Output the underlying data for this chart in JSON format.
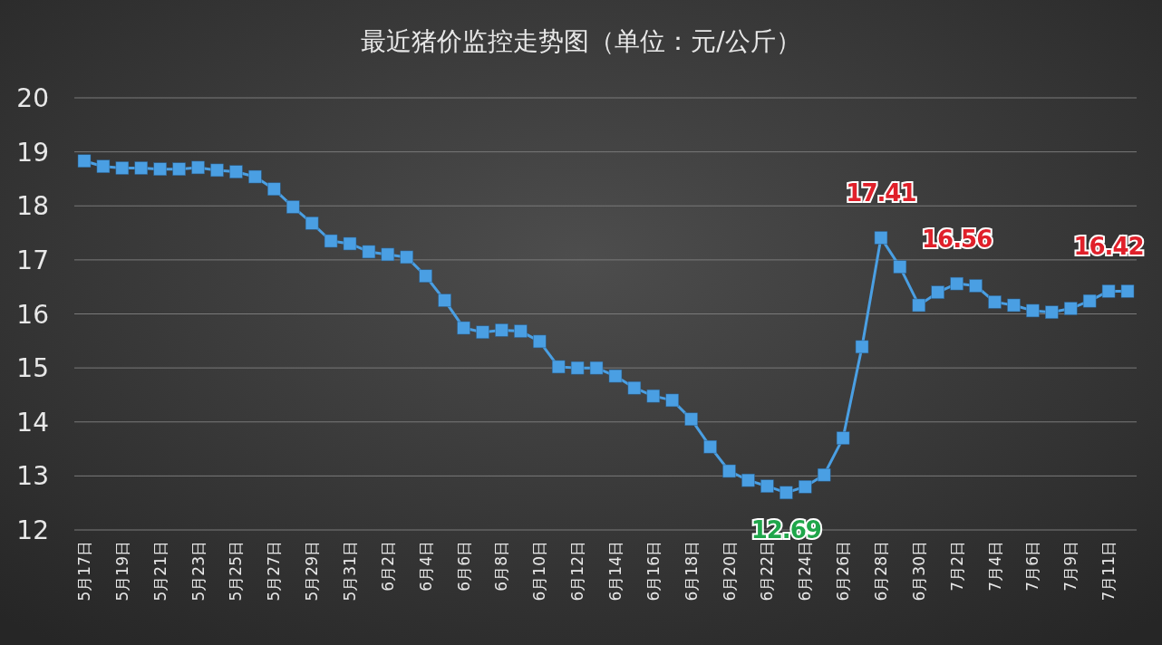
{
  "chart_data": {
    "type": "line",
    "title": "最近猪价监控走势图（单位：元/公斤）",
    "categories": [
      "5月17日",
      null,
      "5月19日",
      null,
      "5月21日",
      null,
      "5月23日",
      null,
      "5月25日",
      null,
      "5月27日",
      null,
      "5月29日",
      null,
      "5月31日",
      null,
      "6月2日",
      null,
      "6月4日",
      null,
      "6月6日",
      null,
      "6月8日",
      null,
      "6月10日",
      null,
      "6月12日",
      null,
      "6月14日",
      null,
      "6月16日",
      null,
      "6月18日",
      null,
      "6月20日",
      null,
      "6月22日",
      null,
      "6月24日",
      null,
      "6月26日",
      null,
      "6月28日",
      null,
      "6月30日",
      null,
      "7月2日",
      null,
      "7月4日",
      null,
      "7月6日",
      null,
      "7月9日",
      null,
      "7月11日",
      null
    ],
    "series": [
      {
        "color": "#4a9fe3",
        "values": [
          18.83,
          18.73,
          18.7,
          18.7,
          18.68,
          18.68,
          18.71,
          18.66,
          18.63,
          18.54,
          18.31,
          17.98,
          17.68,
          17.35,
          17.3,
          17.15,
          17.1,
          17.05,
          16.7,
          16.25,
          15.74,
          15.66,
          15.7,
          15.68,
          15.49,
          15.02,
          15.0,
          15.0,
          14.85,
          14.63,
          14.48,
          14.4,
          14.05,
          13.54,
          13.09,
          12.92,
          12.81,
          12.69,
          12.8,
          13.02,
          13.7,
          15.39,
          17.41,
          16.87,
          16.16,
          16.4,
          16.56,
          16.52,
          16.22,
          16.16,
          16.06,
          16.03,
          16.1,
          16.24,
          16.42,
          16.42
        ],
        "value_labels": [
          null,
          null,
          null,
          null,
          null,
          null,
          null,
          null,
          null,
          null,
          null,
          null,
          null,
          null,
          null,
          null,
          null,
          null,
          null,
          null,
          null,
          null,
          null,
          null,
          null,
          null,
          null,
          null,
          null,
          null,
          null,
          null,
          null,
          null,
          null,
          null,
          null,
          "12.69",
          null,
          null,
          null,
          null,
          "17.41",
          null,
          null,
          null,
          "16.56",
          null,
          null,
          null,
          null,
          null,
          null,
          null,
          "16.42",
          null
        ]
      }
    ],
    "ylim": [
      12,
      20
    ],
    "yticks": [
      12,
      13,
      14,
      15,
      16,
      17,
      18,
      19,
      20
    ],
    "grid": "y",
    "marker": "square",
    "line_style": "solid"
  }
}
